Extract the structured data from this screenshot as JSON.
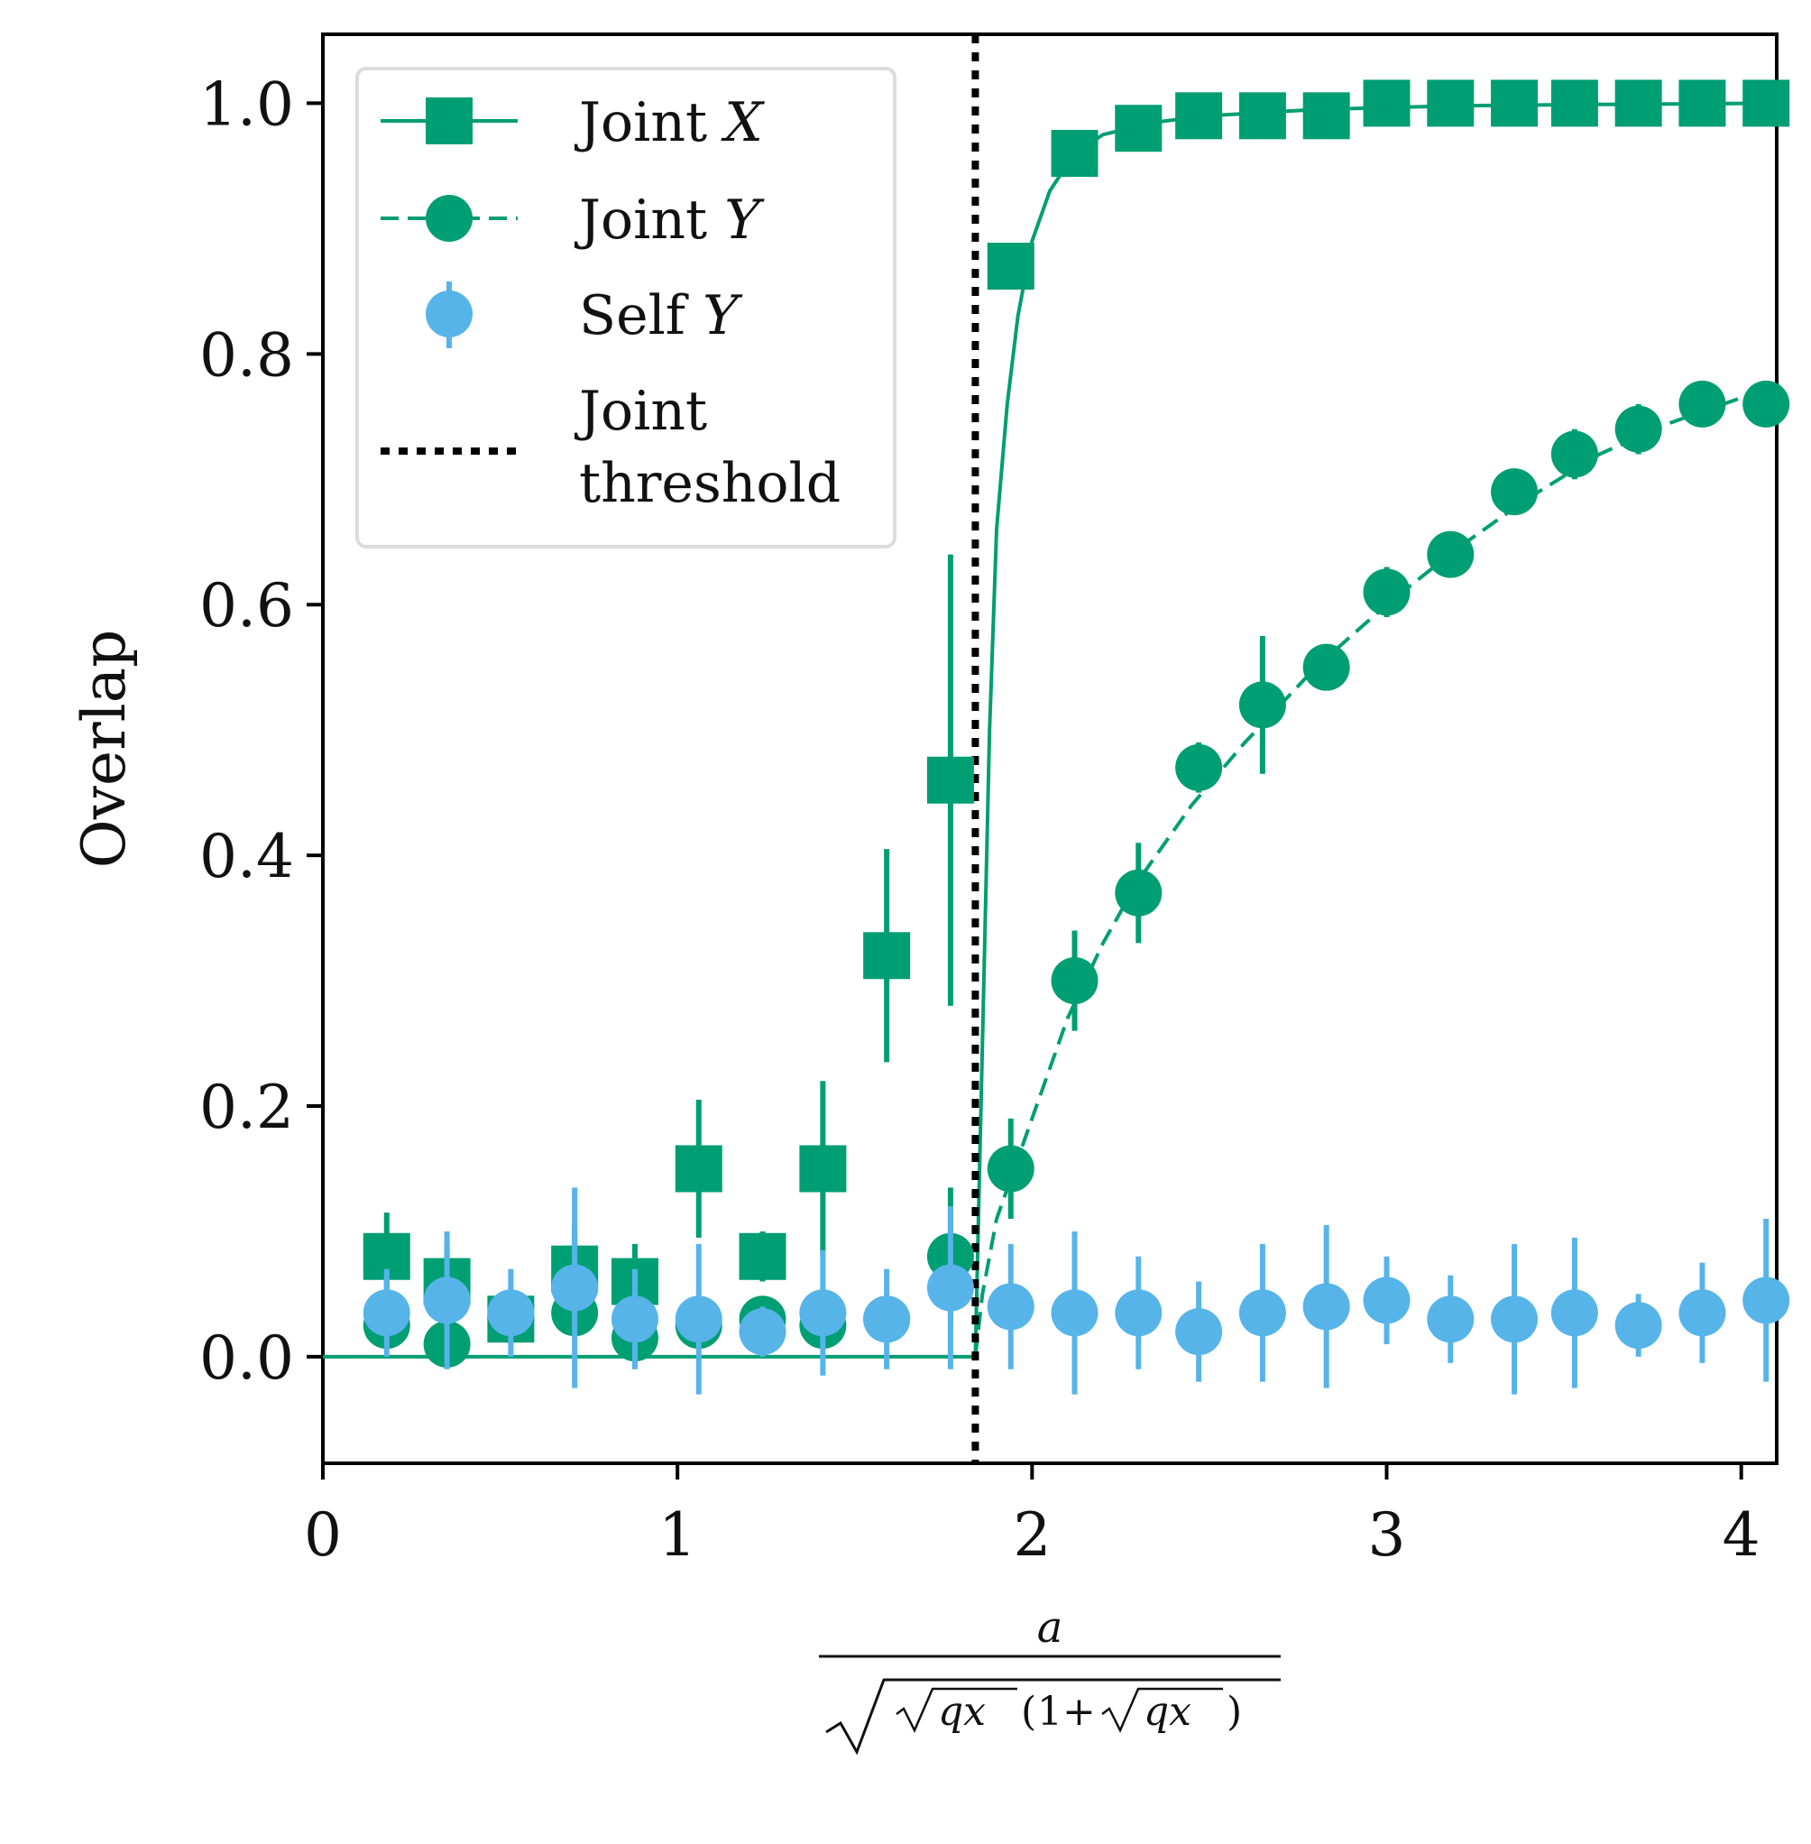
{
  "chart_data": {
    "type": "scatter",
    "ylabel": "Overlap",
    "xlabel_expr": {
      "numerator": "a",
      "denominator_parts": [
        "qx",
        "1+",
        "qx"
      ]
    },
    "xlim": [
      0,
      4.1
    ],
    "ylim": [
      -0.085,
      1.055
    ],
    "x_ticks": [
      0,
      1,
      2,
      3,
      4
    ],
    "x_tick_labels": [
      "0",
      "1",
      "2",
      "3",
      "4"
    ],
    "y_ticks": [
      0.0,
      0.2,
      0.4,
      0.6,
      0.8,
      1.0
    ],
    "y_tick_labels": [
      "0.0",
      "0.2",
      "0.4",
      "0.6",
      "0.8",
      "1.0"
    ],
    "grid": false,
    "legend_position": "top-left",
    "threshold_x": 1.84,
    "series": [
      {
        "name": "Joint X",
        "name_parts": [
          "Joint ",
          "X"
        ],
        "color": "#009E73",
        "marker": "square",
        "kind": "points",
        "x": [
          0.18,
          0.35,
          0.53,
          0.71,
          0.88,
          1.06,
          1.24,
          1.41,
          1.59,
          1.77,
          1.94,
          2.12,
          2.3,
          2.47,
          2.65,
          2.83,
          3.0,
          3.18,
          3.36,
          3.53,
          3.71,
          3.89,
          4.07
        ],
        "y": [
          0.08,
          0.06,
          0.03,
          0.07,
          0.06,
          0.15,
          0.08,
          0.15,
          0.32,
          0.46,
          0.87,
          0.96,
          0.98,
          0.99,
          0.99,
          0.99,
          1.0,
          1.0,
          1.0,
          1.0,
          1.0,
          1.0,
          1.0
        ],
        "yerr": [
          0.035,
          0.03,
          0.02,
          0.035,
          0.03,
          0.055,
          0.02,
          0.07,
          0.085,
          0.18,
          0.01,
          0.005,
          0.003,
          0.002,
          0.002,
          0.001,
          0.001,
          0.001,
          0.001,
          0.001,
          0.001,
          0.001,
          0.001
        ]
      },
      {
        "name": "Joint Y",
        "name_parts": [
          "Joint ",
          "Y"
        ],
        "color": "#009E73",
        "marker": "circle",
        "kind": "points",
        "x": [
          0.18,
          0.35,
          0.53,
          0.71,
          0.88,
          1.06,
          1.24,
          1.41,
          1.59,
          1.77,
          1.94,
          2.12,
          2.3,
          2.47,
          2.65,
          2.83,
          3.0,
          3.18,
          3.36,
          3.53,
          3.71,
          3.89,
          4.07
        ],
        "y": [
          0.025,
          0.01,
          0.03,
          0.035,
          0.015,
          0.025,
          0.03,
          0.025,
          0.03,
          0.08,
          0.15,
          0.3,
          0.37,
          0.47,
          0.52,
          0.55,
          0.61,
          0.64,
          0.69,
          0.72,
          0.74,
          0.76,
          0.76
        ],
        "yerr": [
          0.015,
          0.01,
          0.01,
          0.015,
          0.01,
          0.01,
          0.01,
          0.01,
          0.01,
          0.055,
          0.04,
          0.04,
          0.04,
          0.02,
          0.055,
          0.015,
          0.02,
          0.015,
          0.015,
          0.02,
          0.02,
          0.015,
          0.015
        ]
      },
      {
        "name": "Self Y",
        "name_parts": [
          "Self ",
          "Y"
        ],
        "color": "#56B4E9",
        "marker": "circle",
        "kind": "points",
        "x": [
          0.18,
          0.35,
          0.53,
          0.71,
          0.88,
          1.06,
          1.24,
          1.41,
          1.59,
          1.77,
          1.94,
          2.12,
          2.3,
          2.47,
          2.65,
          2.83,
          3.0,
          3.18,
          3.36,
          3.53,
          3.71,
          3.89,
          4.07
        ],
        "y": [
          0.035,
          0.045,
          0.035,
          0.055,
          0.03,
          0.03,
          0.02,
          0.035,
          0.03,
          0.055,
          0.04,
          0.035,
          0.035,
          0.02,
          0.035,
          0.04,
          0.045,
          0.03,
          0.03,
          0.035,
          0.025,
          0.035,
          0.045
        ],
        "yerr": [
          0.035,
          0.055,
          0.035,
          0.08,
          0.04,
          0.06,
          0.02,
          0.05,
          0.04,
          0.065,
          0.05,
          0.065,
          0.045,
          0.04,
          0.055,
          0.065,
          0.035,
          0.035,
          0.06,
          0.06,
          0.025,
          0.04,
          0.065
        ]
      }
    ],
    "curves": [
      {
        "name": "Joint X theory",
        "color": "#009E73",
        "style": "solid",
        "x": [
          0.0,
          1.84,
          1.86,
          1.88,
          1.9,
          1.93,
          1.96,
          2.0,
          2.05,
          2.12,
          2.2,
          2.35,
          2.5,
          2.8,
          3.2,
          3.6,
          4.1
        ],
        "y": [
          0.0,
          0.0,
          0.25,
          0.5,
          0.66,
          0.76,
          0.83,
          0.89,
          0.93,
          0.96,
          0.975,
          0.985,
          0.99,
          0.995,
          0.998,
          0.999,
          1.0
        ]
      },
      {
        "name": "Joint Y theory",
        "color": "#009E73",
        "style": "dashed",
        "x": [
          1.84,
          1.86,
          1.9,
          1.95,
          2.0,
          2.1,
          2.2,
          2.3,
          2.45,
          2.6,
          2.8,
          3.0,
          3.2,
          3.4,
          3.6,
          3.8,
          4.1
        ],
        "y": [
          0.0,
          0.05,
          0.11,
          0.15,
          0.19,
          0.27,
          0.33,
          0.38,
          0.44,
          0.49,
          0.55,
          0.6,
          0.645,
          0.685,
          0.72,
          0.745,
          0.775
        ]
      }
    ],
    "legend": {
      "threshold_label_line1": "Joint",
      "threshold_label_line2": "threshold"
    }
  }
}
